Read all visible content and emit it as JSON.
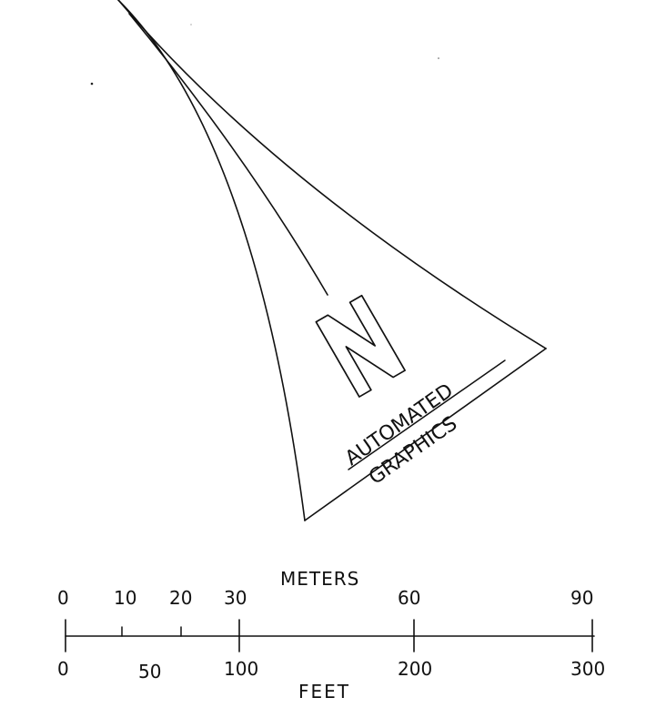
{
  "north_arrow": {
    "letter": "N",
    "line1": "AUTOMATED",
    "line2": "GRAPHICS"
  },
  "scale_bar": {
    "top_title": "METERS",
    "bottom_title": "FEET",
    "meter_labels": [
      "0",
      "10",
      "20",
      "30",
      "60",
      "90"
    ],
    "feet_labels": [
      "0",
      "50",
      "100",
      "200",
      "300"
    ]
  }
}
